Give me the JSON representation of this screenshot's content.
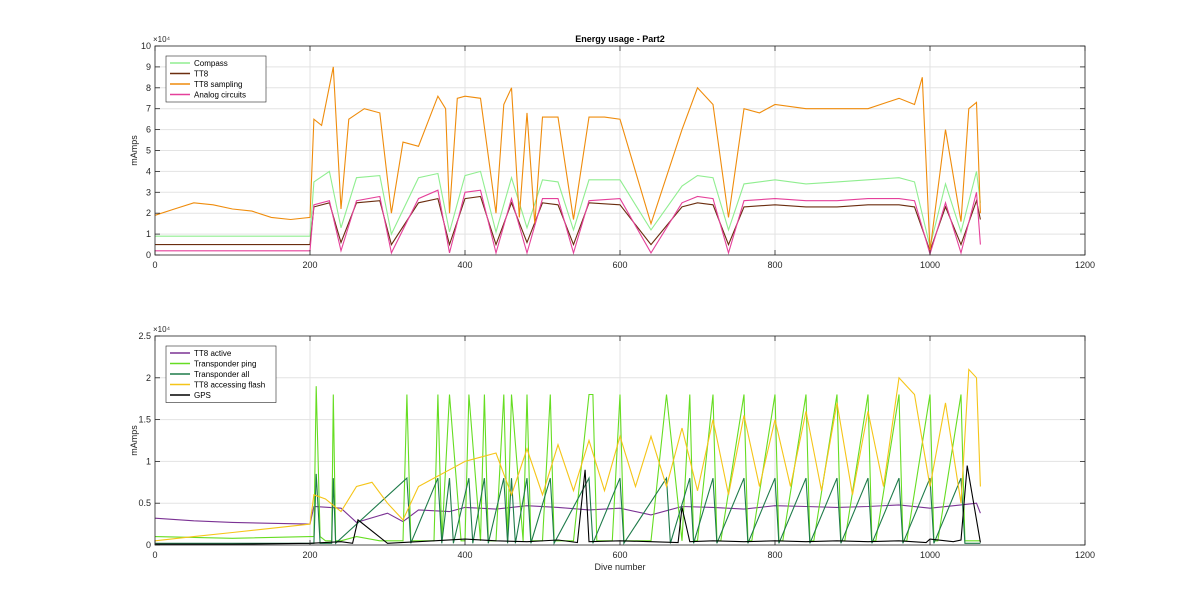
{
  "chart_data": [
    {
      "type": "line",
      "title": "Energy usage - Part2",
      "xlabel": "",
      "ylabel": "mAmps",
      "xlim": [
        0,
        1200
      ],
      "ylim": [
        0,
        100000
      ],
      "x_ticks": [
        0,
        200,
        400,
        600,
        800,
        1000,
        1200
      ],
      "x_tick_labels": [
        "0",
        "200",
        "400",
        "600",
        "800",
        "1000",
        "1200"
      ],
      "y_ticks": [
        0,
        10000,
        20000,
        30000,
        40000,
        50000,
        60000,
        70000,
        80000,
        90000,
        100000
      ],
      "y_tick_labels": [
        "0",
        "1",
        "2",
        "3",
        "4",
        "5",
        "6",
        "7",
        "8",
        "9",
        "10"
      ],
      "y_exponent_label": "×10⁴",
      "grid": true,
      "legend_position": "top-left",
      "series": [
        {
          "name": "Compass",
          "color": "#90ee90",
          "x": [
            0,
            50,
            100,
            150,
            200,
            205,
            225,
            240,
            260,
            290,
            305,
            340,
            365,
            380,
            400,
            420,
            440,
            460,
            480,
            500,
            520,
            540,
            560,
            600,
            640,
            680,
            700,
            720,
            740,
            760,
            800,
            840,
            880,
            920,
            960,
            980,
            1000,
            1020,
            1040,
            1060,
            1065
          ],
          "y": [
            9000,
            9000,
            9000,
            9000,
            9000,
            35000,
            40000,
            13000,
            37000,
            38000,
            10000,
            37000,
            39000,
            11000,
            38000,
            40000,
            11000,
            37000,
            13000,
            36000,
            35000,
            12000,
            36000,
            36000,
            12000,
            33000,
            38000,
            37000,
            12000,
            34000,
            36000,
            34000,
            35000,
            36000,
            37000,
            35000,
            4000,
            34000,
            11000,
            40000,
            25000
          ]
        },
        {
          "name": "TT8",
          "color": "#6b2d0f",
          "x": [
            0,
            50,
            100,
            150,
            200,
            205,
            225,
            240,
            260,
            290,
            305,
            340,
            365,
            380,
            400,
            420,
            440,
            460,
            480,
            500,
            520,
            540,
            560,
            600,
            640,
            680,
            700,
            720,
            740,
            760,
            800,
            840,
            880,
            920,
            960,
            980,
            1000,
            1020,
            1040,
            1060,
            1065
          ],
          "y": [
            5000,
            5000,
            5000,
            5000,
            5000,
            23000,
            25000,
            6000,
            25000,
            26000,
            5000,
            25000,
            27000,
            5000,
            27000,
            28000,
            5000,
            25000,
            6000,
            25000,
            24000,
            5000,
            25000,
            24000,
            5000,
            23000,
            25000,
            24000,
            5000,
            23000,
            24000,
            23000,
            23000,
            24000,
            24000,
            23000,
            2000,
            23000,
            5000,
            26000,
            17000
          ]
        },
        {
          "name": "TT8 sampling",
          "color": "#ef8c0c",
          "x": [
            0,
            25,
            50,
            75,
            100,
            125,
            150,
            175,
            200,
            205,
            215,
            230,
            240,
            250,
            270,
            290,
            305,
            320,
            340,
            365,
            375,
            380,
            390,
            400,
            420,
            440,
            450,
            460,
            470,
            480,
            490,
            500,
            520,
            540,
            560,
            580,
            600,
            640,
            680,
            700,
            720,
            740,
            760,
            780,
            800,
            840,
            880,
            920,
            960,
            980,
            990,
            1000,
            1020,
            1040,
            1050,
            1060,
            1065
          ],
          "y": [
            19000,
            22000,
            25000,
            24000,
            22000,
            21000,
            18000,
            17000,
            18000,
            65000,
            62000,
            90000,
            22000,
            65000,
            70000,
            68000,
            20000,
            54000,
            52000,
            76000,
            70000,
            20000,
            75000,
            76000,
            75000,
            20000,
            72000,
            80000,
            18000,
            68000,
            15000,
            66000,
            66000,
            17000,
            66000,
            66000,
            65000,
            15000,
            60000,
            80000,
            72000,
            18000,
            70000,
            68000,
            72000,
            70000,
            70000,
            70000,
            75000,
            72000,
            85000,
            2000,
            60000,
            16000,
            70000,
            73000,
            20000
          ]
        },
        {
          "name": "Analog circuits",
          "color": "#e5409a",
          "x": [
            0,
            50,
            100,
            150,
            200,
            205,
            225,
            240,
            260,
            290,
            305,
            340,
            365,
            380,
            400,
            420,
            440,
            460,
            480,
            500,
            520,
            540,
            560,
            600,
            640,
            680,
            700,
            720,
            740,
            760,
            800,
            840,
            880,
            920,
            960,
            980,
            1000,
            1020,
            1040,
            1060,
            1065
          ],
          "y": [
            2000,
            2000,
            2000,
            2000,
            2000,
            24000,
            26000,
            2000,
            26000,
            28000,
            1000,
            27000,
            31000,
            1000,
            30000,
            31000,
            1000,
            27000,
            1000,
            27000,
            27000,
            1000,
            26000,
            27000,
            1000,
            25000,
            28000,
            27000,
            1000,
            26000,
            27000,
            26000,
            26000,
            27000,
            27000,
            26000,
            500,
            25000,
            1000,
            30000,
            5000
          ]
        }
      ]
    },
    {
      "type": "line",
      "title": "",
      "xlabel": "Dive number",
      "ylabel": "mAmps",
      "xlim": [
        0,
        1200
      ],
      "ylim": [
        0,
        25000
      ],
      "x_ticks": [
        0,
        200,
        400,
        600,
        800,
        1000,
        1200
      ],
      "x_tick_labels": [
        "0",
        "200",
        "400",
        "600",
        "800",
        "1000",
        "1200"
      ],
      "y_ticks": [
        0,
        5000,
        10000,
        15000,
        20000,
        25000
      ],
      "y_tick_labels": [
        "0",
        "0.5",
        "1",
        "1.5",
        "2",
        "2.5"
      ],
      "y_exponent_label": "×10⁴",
      "grid": true,
      "legend_position": "top-left",
      "series": [
        {
          "name": "TT8 active",
          "color": "#7b3294",
          "x": [
            0,
            50,
            100,
            150,
            200,
            205,
            240,
            260,
            300,
            320,
            340,
            380,
            400,
            440,
            480,
            520,
            560,
            600,
            640,
            680,
            720,
            760,
            800,
            840,
            880,
            920,
            960,
            1000,
            1040,
            1060,
            1065
          ],
          "y": [
            3200,
            2900,
            2700,
            2600,
            2500,
            4600,
            4400,
            2700,
            3800,
            2800,
            4200,
            4000,
            4500,
            4300,
            4700,
            4500,
            4200,
            4400,
            3600,
            4600,
            4500,
            4300,
            4700,
            4600,
            4500,
            4600,
            4800,
            4400,
            4800,
            5000,
            3800
          ]
        },
        {
          "name": "Transponder ping",
          "color": "#66dd22",
          "x": [
            0,
            100,
            200,
            205,
            208,
            213,
            220,
            228,
            230,
            233,
            240,
            260,
            290,
            300,
            320,
            325,
            330,
            340,
            360,
            365,
            370,
            380,
            395,
            400,
            405,
            420,
            425,
            430,
            440,
            450,
            455,
            460,
            475,
            480,
            485,
            500,
            510,
            515,
            520,
            540,
            560,
            565,
            570,
            590,
            600,
            605,
            620,
            640,
            660,
            680,
            690,
            695,
            700,
            720,
            725,
            730,
            760,
            765,
            770,
            800,
            805,
            810,
            840,
            845,
            850,
            880,
            885,
            890,
            920,
            925,
            930,
            960,
            965,
            970,
            1000,
            1005,
            1010,
            1040,
            1045,
            1050,
            1065
          ],
          "y": [
            1000,
            800,
            1000,
            1000,
            19000,
            1000,
            500,
            500,
            18000,
            500,
            500,
            1000,
            500,
            500,
            500,
            18000,
            500,
            500,
            500,
            18000,
            500,
            18000,
            500,
            500,
            18000,
            500,
            18000,
            500,
            500,
            18000,
            500,
            18000,
            500,
            18000,
            500,
            500,
            18000,
            500,
            500,
            500,
            18000,
            18000,
            500,
            500,
            18000,
            500,
            500,
            500,
            18000,
            500,
            18000,
            500,
            500,
            18000,
            500,
            500,
            18000,
            500,
            500,
            18000,
            500,
            500,
            18000,
            500,
            500,
            18000,
            500,
            500,
            18000,
            500,
            500,
            18000,
            500,
            500,
            18000,
            500,
            500,
            18000,
            500,
            500,
            500
          ]
        },
        {
          "name": "Transponder all",
          "color": "#1e7b4a",
          "x": [
            0,
            200,
            205,
            208,
            213,
            228,
            230,
            233,
            325,
            330,
            365,
            370,
            380,
            385,
            405,
            410,
            425,
            430,
            450,
            455,
            460,
            465,
            480,
            485,
            510,
            515,
            560,
            565,
            600,
            605,
            660,
            665,
            690,
            695,
            720,
            725,
            760,
            765,
            800,
            805,
            840,
            845,
            880,
            885,
            920,
            925,
            960,
            965,
            1000,
            1005,
            1040,
            1045,
            1065
          ],
          "y": [
            200,
            200,
            200,
            8500,
            200,
            200,
            8000,
            200,
            8000,
            200,
            8000,
            200,
            8000,
            200,
            8000,
            200,
            8000,
            200,
            8000,
            200,
            8000,
            200,
            8000,
            200,
            8000,
            200,
            8000,
            200,
            8000,
            200,
            8000,
            200,
            8000,
            200,
            8000,
            200,
            8000,
            200,
            8000,
            200,
            8000,
            200,
            8000,
            200,
            8000,
            200,
            8000,
            200,
            8000,
            200,
            8000,
            200,
            200
          ]
        },
        {
          "name": "TT8 accessing flash",
          "color": "#f5c518",
          "x": [
            0,
            50,
            100,
            150,
            200,
            205,
            220,
            240,
            260,
            280,
            300,
            320,
            340,
            360,
            380,
            400,
            420,
            440,
            460,
            480,
            500,
            520,
            540,
            560,
            580,
            600,
            620,
            640,
            660,
            680,
            700,
            720,
            740,
            760,
            780,
            800,
            820,
            840,
            860,
            880,
            900,
            920,
            940,
            960,
            970,
            980,
            1000,
            1020,
            1040,
            1050,
            1060,
            1065
          ],
          "y": [
            500,
            1000,
            1500,
            2000,
            2500,
            6000,
            5500,
            4000,
            7000,
            7500,
            5000,
            3000,
            7000,
            8000,
            9000,
            10000,
            10500,
            11000,
            6000,
            11500,
            6000,
            12000,
            6500,
            12500,
            6500,
            13000,
            7000,
            13000,
            7000,
            14000,
            6500,
            15000,
            6000,
            15500,
            7000,
            15000,
            7000,
            16000,
            6500,
            17000,
            6000,
            16000,
            7000,
            20000,
            19000,
            18000,
            7000,
            17000,
            5000,
            21000,
            20000,
            7000
          ]
        },
        {
          "name": "GPS",
          "color": "#000000",
          "x": [
            0,
            100,
            200,
            240,
            255,
            262,
            300,
            360,
            400,
            440,
            480,
            520,
            545,
            555,
            560,
            600,
            640,
            675,
            680,
            690,
            720,
            760,
            800,
            840,
            880,
            920,
            960,
            995,
            1000,
            1030,
            1040,
            1048,
            1065
          ],
          "y": [
            100,
            100,
            200,
            400,
            200,
            3000,
            200,
            500,
            700,
            500,
            400,
            600,
            300,
            9000,
            400,
            500,
            400,
            300,
            4500,
            400,
            500,
            400,
            500,
            400,
            500,
            400,
            500,
            300,
            700,
            400,
            600,
            9500,
            300
          ]
        }
      ]
    }
  ]
}
